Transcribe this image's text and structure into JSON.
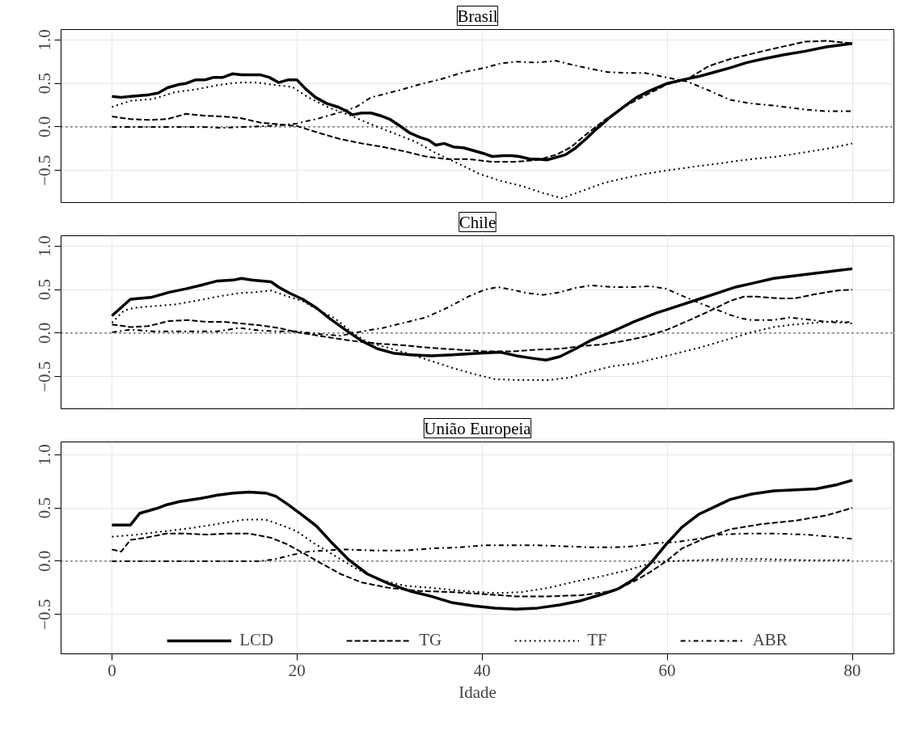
{
  "chart_data": [
    {
      "type": "line",
      "title": "Brasil",
      "xlim": [
        -5.5,
        84.5
      ],
      "ylim": [
        -0.87,
        1.12
      ],
      "yticks": [
        {
          "value": -0.5,
          "label": "−0.5"
        },
        {
          "value": 0,
          "label": "0.0"
        },
        {
          "value": 0.5,
          "label": "0.5"
        },
        {
          "value": 1,
          "label": "1.0"
        }
      ],
      "xticks": [
        0,
        20,
        40,
        60,
        80
      ],
      "tick_labels": "y",
      "grid": true,
      "ref_lines": [
        {
          "axis": "y",
          "value": 0,
          "label": null,
          "color": "#000000",
          "line_style": "dotted"
        }
      ],
      "series": [
        {
          "color": "#000000",
          "line_style": "solid",
          "x": [
            0,
            1,
            2,
            4,
            5,
            6,
            7.3,
            8,
            9,
            10,
            11,
            12,
            13,
            14,
            15,
            16,
            17,
            18,
            19,
            20,
            21,
            22,
            23.2,
            24.4,
            25.2,
            26,
            27,
            28,
            29,
            30,
            31,
            32.2,
            33.3,
            34.2,
            35,
            35.9,
            36.9,
            38,
            39,
            40.3,
            41.1,
            42.3,
            43.2,
            44,
            45.2,
            46,
            47,
            48,
            49,
            50,
            51.2,
            52.4,
            53.8,
            55.3,
            56.7,
            58.2,
            60,
            61.6,
            63.4,
            65.1,
            66.8,
            68.6,
            70.3,
            72.6,
            74.9,
            77.2,
            80
          ],
          "values": [
            0.35,
            0.34,
            0.35,
            0.37,
            0.39,
            0.45,
            0.49,
            0.5,
            0.54,
            0.54,
            0.57,
            0.57,
            0.61,
            0.6,
            0.6,
            0.6,
            0.57,
            0.51,
            0.54,
            0.54,
            0.43,
            0.34,
            0.27,
            0.23,
            0.19,
            0.14,
            0.16,
            0.16,
            0.13,
            0.09,
            0.02,
            -0.07,
            -0.12,
            -0.15,
            -0.21,
            -0.19,
            -0.23,
            -0.24,
            -0.27,
            -0.31,
            -0.34,
            -0.33,
            -0.33,
            -0.34,
            -0.37,
            -0.37,
            -0.38,
            -0.35,
            -0.32,
            -0.25,
            -0.14,
            -0.02,
            0.11,
            0.23,
            0.34,
            0.42,
            0.5,
            0.54,
            0.58,
            0.63,
            0.68,
            0.74,
            0.78,
            0.83,
            0.87,
            0.92,
            0.96
          ]
        },
        {
          "color": "#000000",
          "line_style": "dashed",
          "x": [
            0,
            2,
            4,
            6,
            8,
            10,
            12,
            14,
            16,
            18,
            20,
            22.4,
            24.7,
            27,
            29.3,
            31.6,
            33.9,
            36.2,
            38.5,
            41,
            43.7,
            46,
            48,
            49.5,
            51.2,
            53,
            55.3,
            57.6,
            60,
            62.2,
            64.5,
            66.8,
            69.1,
            71.5,
            74.9,
            77.2,
            80
          ],
          "values": [
            0.12,
            0.09,
            0.08,
            0.09,
            0.15,
            0.13,
            0.12,
            0.1,
            0.05,
            0.03,
            0.01,
            -0.07,
            -0.14,
            -0.19,
            -0.23,
            -0.28,
            -0.34,
            -0.37,
            -0.37,
            -0.4,
            -0.4,
            -0.38,
            -0.32,
            -0.24,
            -0.09,
            0.06,
            0.23,
            0.36,
            0.49,
            0.55,
            0.7,
            0.78,
            0.84,
            0.9,
            0.98,
            0.99,
            0.96
          ]
        },
        {
          "color": "#000000",
          "line_style": "dotted",
          "x": [
            0,
            2,
            4.4,
            6.8,
            9,
            11.4,
            13.7,
            15.7,
            17.7,
            19.5,
            21.2,
            23.5,
            25.8,
            28,
            30.4,
            32.8,
            35,
            37.4,
            39.7,
            42,
            44.3,
            46.6,
            48.6,
            50.7,
            53,
            55.3,
            57.6,
            60,
            63.4,
            66.3,
            69.1,
            72,
            75,
            77.8,
            80
          ],
          "values": [
            0.23,
            0.3,
            0.32,
            0.4,
            0.43,
            0.48,
            0.51,
            0.51,
            0.48,
            0.46,
            0.34,
            0.22,
            0.13,
            0.03,
            -0.07,
            -0.17,
            -0.3,
            -0.42,
            -0.54,
            -0.62,
            -0.68,
            -0.76,
            -0.82,
            -0.74,
            -0.65,
            -0.59,
            -0.54,
            -0.5,
            -0.45,
            -0.41,
            -0.37,
            -0.34,
            -0.29,
            -0.24,
            -0.19
          ]
        },
        {
          "color": "#000000",
          "line_style": "dashdot",
          "x": [
            0,
            2,
            4.4,
            7.3,
            9.6,
            12,
            14.3,
            16.6,
            18.3,
            20,
            22.4,
            24.7,
            26.4,
            28,
            31,
            33.3,
            35.6,
            38,
            40.3,
            42,
            43.7,
            45.8,
            48,
            49.5,
            51.2,
            53.6,
            55.9,
            57.6,
            59.9,
            62.2,
            64.5,
            66.8,
            69.1,
            72,
            74.9,
            77.2,
            80
          ],
          "values": [
            0,
            0,
            0,
            0,
            0,
            -0.01,
            0,
            0.01,
            0.02,
            0.04,
            0.1,
            0.17,
            0.23,
            0.34,
            0.42,
            0.49,
            0.55,
            0.63,
            0.68,
            0.73,
            0.75,
            0.74,
            0.76,
            0.72,
            0.68,
            0.63,
            0.62,
            0.62,
            0.57,
            0.52,
            0.42,
            0.31,
            0.27,
            0.24,
            0.2,
            0.18,
            0.18
          ]
        }
      ]
    },
    {
      "type": "line",
      "title": "Chile",
      "xlim": [
        -5.5,
        84.5
      ],
      "ylim": [
        -0.87,
        1.12
      ],
      "yticks": [
        {
          "value": -0.5,
          "label": "−0.5"
        },
        {
          "value": 0,
          "label": "0.0"
        },
        {
          "value": 0.5,
          "label": "0.5"
        },
        {
          "value": 1,
          "label": "1.0"
        }
      ],
      "xticks": [
        0,
        20,
        40,
        60,
        80
      ],
      "tick_labels": "y",
      "grid": true,
      "ref_lines": [
        {
          "axis": "y",
          "value": 0,
          "label": null,
          "color": "#000000",
          "line_style": "dotted"
        }
      ],
      "series": [
        {
          "color": "#000000",
          "line_style": "solid",
          "x": [
            0,
            2,
            4.2,
            6.2,
            8,
            9.6,
            11.4,
            13.1,
            14,
            15.1,
            17.2,
            18,
            19.2,
            20.6,
            22.1,
            23.5,
            25.2,
            27,
            28.7,
            30.4,
            32.2,
            34.5,
            36.8,
            39.7,
            42,
            43.7,
            45.5,
            46.9,
            48.4,
            50.1,
            51.8,
            54.1,
            56.4,
            58.8,
            61.1,
            63.4,
            65.7,
            67.4,
            69.1,
            71.5,
            73.8,
            76.1,
            78.4,
            80
          ],
          "values": [
            0.2,
            0.39,
            0.41,
            0.47,
            0.51,
            0.55,
            0.6,
            0.61,
            0.63,
            0.61,
            0.59,
            0.53,
            0.46,
            0.39,
            0.29,
            0.17,
            0.04,
            -0.09,
            -0.18,
            -0.23,
            -0.25,
            -0.26,
            -0.25,
            -0.23,
            -0.22,
            -0.26,
            -0.29,
            -0.31,
            -0.27,
            -0.18,
            -0.08,
            0.02,
            0.13,
            0.23,
            0.31,
            0.39,
            0.47,
            0.53,
            0.57,
            0.63,
            0.66,
            0.69,
            0.72,
            0.74
          ]
        },
        {
          "color": "#000000",
          "line_style": "dashed",
          "x": [
            0,
            2,
            3.9,
            6.2,
            8.2,
            10.2,
            12,
            14,
            16,
            18,
            20,
            21.8,
            24.1,
            26.1,
            28.7,
            31.6,
            34.5,
            37.4,
            40.3,
            43.2,
            46,
            48.4,
            50.7,
            53,
            55.3,
            57.6,
            60,
            62.2,
            64.5,
            66.8,
            68.3,
            69.7,
            72,
            73.8,
            76.1,
            78.4,
            80
          ],
          "values": [
            0.1,
            0.07,
            0.08,
            0.14,
            0.15,
            0.13,
            0.13,
            0.11,
            0.09,
            0.06,
            0.01,
            -0.02,
            -0.06,
            -0.09,
            -0.12,
            -0.14,
            -0.17,
            -0.19,
            -0.21,
            -0.21,
            -0.19,
            -0.18,
            -0.15,
            -0.13,
            -0.09,
            -0.04,
            0.04,
            0.14,
            0.25,
            0.37,
            0.42,
            0.42,
            0.4,
            0.4,
            0.45,
            0.49,
            0.5
          ]
        },
        {
          "color": "#000000",
          "line_style": "dotted",
          "x": [
            0,
            1.3,
            2.4,
            4.4,
            6.8,
            9,
            11.4,
            13.7,
            15.4,
            17.2,
            19,
            20.6,
            22.4,
            24.1,
            25.8,
            27.5,
            29.9,
            32.2,
            34.5,
            36.8,
            39.1,
            41.4,
            44.3,
            47.2,
            49.5,
            51.8,
            54.1,
            56.4,
            58.8,
            61.1,
            63.4,
            66.3,
            69.1,
            71.5,
            73.8,
            76.1,
            78.4,
            80
          ],
          "values": [
            0.12,
            0.26,
            0.29,
            0.31,
            0.33,
            0.37,
            0.42,
            0.46,
            0.47,
            0.49,
            0.42,
            0.37,
            0.26,
            0.17,
            0.02,
            -0.1,
            -0.17,
            -0.24,
            -0.32,
            -0.4,
            -0.47,
            -0.53,
            -0.54,
            -0.54,
            -0.51,
            -0.44,
            -0.38,
            -0.35,
            -0.29,
            -0.23,
            -0.17,
            -0.08,
            0.01,
            0.07,
            0.1,
            0.12,
            0.14,
            0.11
          ]
        },
        {
          "color": "#000000",
          "line_style": "dashdot",
          "x": [
            0,
            2,
            4.4,
            6.8,
            9,
            11.4,
            13.7,
            16,
            18,
            20,
            22.4,
            24.7,
            27,
            29.3,
            31.6,
            33.9,
            36.2,
            38.5,
            40.3,
            41.7,
            43.2,
            44.9,
            46.6,
            48.4,
            50.1,
            51.8,
            54.1,
            56.4,
            58.2,
            59.9,
            61.6,
            63.4,
            65.1,
            66.8,
            68,
            69.1,
            71.5,
            73.2,
            74.9,
            77.2,
            78.9,
            80
          ],
          "values": [
            0.01,
            0.04,
            0.02,
            0.02,
            0.02,
            0.02,
            0.06,
            0.03,
            0.02,
            0.02,
            -0.01,
            -0.03,
            0.02,
            0.06,
            0.12,
            0.18,
            0.29,
            0.42,
            0.5,
            0.53,
            0.5,
            0.46,
            0.44,
            0.47,
            0.52,
            0.55,
            0.53,
            0.53,
            0.54,
            0.51,
            0.43,
            0.35,
            0.28,
            0.21,
            0.17,
            0.15,
            0.15,
            0.18,
            0.16,
            0.13,
            0.12,
            0.13
          ]
        }
      ]
    },
    {
      "type": "line",
      "title": "União Europeia",
      "xlabel": "Idade",
      "xlim": [
        -5.5,
        84.5
      ],
      "ylim": [
        -0.87,
        1.12
      ],
      "xticks": [
        0,
        20,
        40,
        60,
        80
      ],
      "yticks": [
        {
          "value": -0.5,
          "label": "−0.5"
        },
        {
          "value": 0,
          "label": "0.0"
        },
        {
          "value": 0.5,
          "label": "0.5"
        },
        {
          "value": 1,
          "label": "1.0"
        }
      ],
      "grid": true,
      "legend": "bottom",
      "ref_lines": [
        {
          "axis": "y",
          "value": 0,
          "label": null,
          "color": "#000000",
          "line_style": "dotted"
        }
      ],
      "series": [
        {
          "name": "LCD",
          "color": "#000000",
          "line_style": "solid",
          "x": [
            0,
            1,
            2,
            3,
            4.2,
            5,
            5.9,
            7.3,
            9.6,
            11.4,
            13.1,
            14.8,
            16.6,
            17.7,
            18.9,
            20.3,
            22.1,
            23.8,
            25.5,
            27.6,
            29.9,
            32.2,
            34.5,
            36.8,
            39.1,
            41.4,
            43.7,
            46,
            48.4,
            50.7,
            53,
            54.7,
            56.4,
            58.2,
            59.9,
            61.6,
            63.4,
            65.1,
            66.8,
            69.1,
            71.5,
            73.8,
            76.1,
            78.4,
            80
          ],
          "values": [
            0.34,
            0.34,
            0.34,
            0.45,
            0.48,
            0.5,
            0.53,
            0.56,
            0.59,
            0.62,
            0.64,
            0.65,
            0.64,
            0.61,
            0.54,
            0.45,
            0.33,
            0.17,
            0.02,
            -0.12,
            -0.21,
            -0.28,
            -0.33,
            -0.39,
            -0.42,
            -0.44,
            -0.45,
            -0.44,
            -0.41,
            -0.37,
            -0.31,
            -0.26,
            -0.17,
            -0.02,
            0.16,
            0.32,
            0.44,
            0.51,
            0.58,
            0.63,
            0.66,
            0.67,
            0.68,
            0.72,
            0.76
          ]
        },
        {
          "name": "TG",
          "color": "#000000",
          "line_style": "dashed",
          "x": [
            0,
            1,
            2,
            3.6,
            5.9,
            7.9,
            10.2,
            12.5,
            14.8,
            17.2,
            18.9,
            20.6,
            22.4,
            24.7,
            27,
            29.9,
            33.3,
            36.8,
            40.3,
            43.7,
            47.2,
            50.7,
            54.1,
            56.4,
            58.2,
            59.9,
            61.6,
            63.9,
            66.8,
            70.3,
            73.8,
            77.2,
            80
          ],
          "values": [
            0.11,
            0.09,
            0.2,
            0.22,
            0.26,
            0.26,
            0.25,
            0.26,
            0.26,
            0.22,
            0.16,
            0.08,
            -0.01,
            -0.12,
            -0.2,
            -0.25,
            -0.28,
            -0.29,
            -0.31,
            -0.33,
            -0.33,
            -0.32,
            -0.28,
            -0.19,
            -0.1,
            0,
            0.12,
            0.21,
            0.3,
            0.35,
            0.38,
            0.43,
            0.5
          ]
        },
        {
          "name": "TF",
          "color": "#000000",
          "line_style": "dotted",
          "x": [
            0,
            2.7,
            5.6,
            8.5,
            11.4,
            14.3,
            16.6,
            18.3,
            20,
            21.8,
            24.1,
            26.4,
            28.7,
            31.6,
            34.5,
            38,
            41.4,
            44.3,
            47.2,
            50.1,
            53,
            55.9,
            58.2,
            60,
            63.4,
            66.8,
            70.3,
            74.9,
            80
          ],
          "values": [
            0.23,
            0.25,
            0.28,
            0.31,
            0.35,
            0.39,
            0.39,
            0.34,
            0.28,
            0.17,
            0.05,
            -0.07,
            -0.17,
            -0.23,
            -0.25,
            -0.28,
            -0.3,
            -0.29,
            -0.25,
            -0.19,
            -0.14,
            -0.08,
            -0.02,
            0,
            0.01,
            0.02,
            0.02,
            0.01,
            0.01
          ]
        },
        {
          "name": "ABR",
          "color": "#000000",
          "line_style": "dashdot",
          "x": [
            0,
            5.6,
            11.4,
            16,
            17.7,
            19.5,
            21.2,
            22.9,
            25.2,
            28.7,
            31.6,
            34.5,
            37.4,
            40.3,
            43.7,
            46,
            48.9,
            51.8,
            54.1,
            56.4,
            58.8,
            61,
            63.4,
            65.7,
            68.6,
            71.5,
            74.9,
            77.8,
            80
          ],
          "values": [
            0,
            0,
            0,
            0,
            0.02,
            0.06,
            0.09,
            0.1,
            0.11,
            0.1,
            0.1,
            0.12,
            0.13,
            0.15,
            0.15,
            0.15,
            0.14,
            0.13,
            0.13,
            0.14,
            0.17,
            0.18,
            0.21,
            0.25,
            0.26,
            0.26,
            0.25,
            0.23,
            0.21
          ]
        }
      ]
    }
  ]
}
